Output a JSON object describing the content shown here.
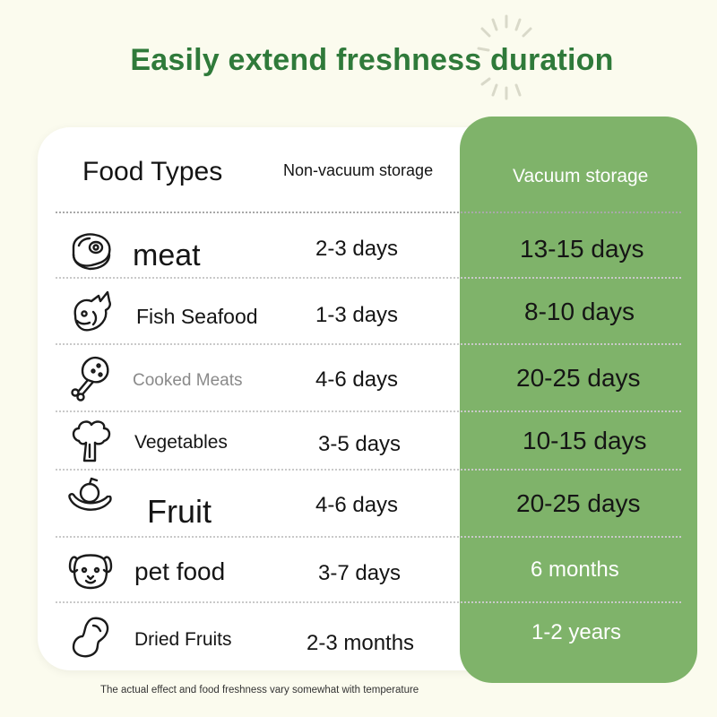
{
  "title": "Easily extend freshness duration",
  "table": {
    "headers": {
      "food_types": "Food Types",
      "non_vacuum": "Non-vacuum storage",
      "vacuum": "Vacuum storage"
    },
    "rows": [
      {
        "icon": "meat-icon",
        "food": "meat",
        "non_vacuum": "2-3 days",
        "vacuum": "13-15 days"
      },
      {
        "icon": "fish-icon",
        "food": "Fish Seafood",
        "non_vacuum": "1-3 days",
        "vacuum": "8-10 days"
      },
      {
        "icon": "drumstick-icon",
        "food": "Cooked Meats",
        "non_vacuum": "4-6 days",
        "vacuum": "20-25 days"
      },
      {
        "icon": "broccoli-icon",
        "food": "Vegetables",
        "non_vacuum": "3-5 days",
        "vacuum": "10-15 days"
      },
      {
        "icon": "fruit-icon",
        "food": "Fruit",
        "non_vacuum": "4-6 days",
        "vacuum": "20-25 days"
      },
      {
        "icon": "dog-icon",
        "food": "pet food",
        "non_vacuum": "3-7 days",
        "vacuum": "6 months"
      },
      {
        "icon": "peanut-icon",
        "food": "Dried Fruits",
        "non_vacuum": "2-3 months",
        "vacuum": "1-2 years"
      }
    ]
  },
  "footnote": "The actual effect and food freshness vary somewhat with temperature",
  "colors": {
    "background": "#fbfbee",
    "title_green": "#2f7a3a",
    "vacuum_column": "#7fb36a",
    "card": "#ffffff"
  }
}
